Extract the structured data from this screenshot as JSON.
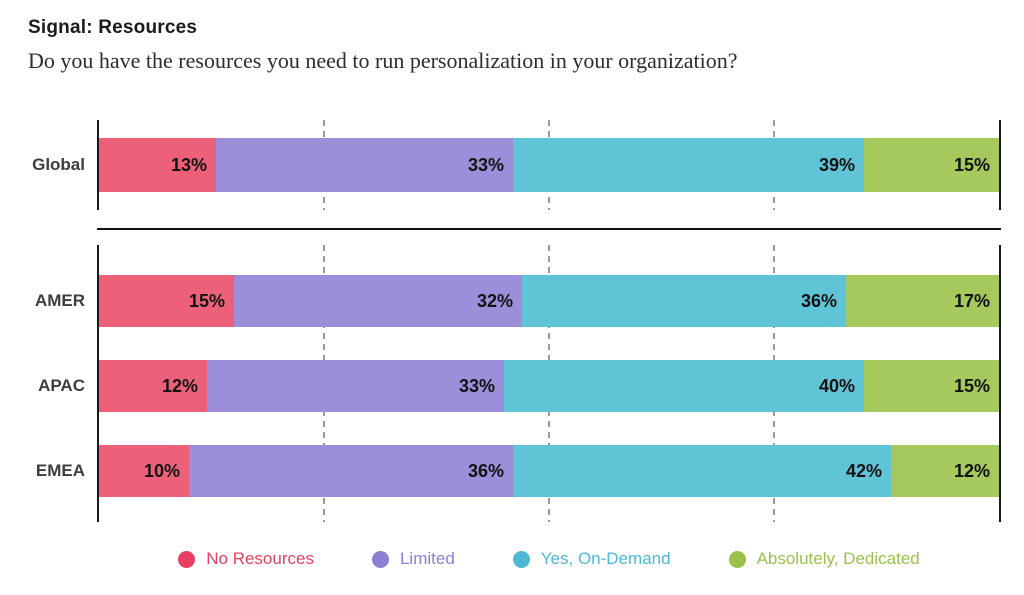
{
  "header": {
    "title": "Signal: Resources",
    "subtitle": "Do you have the resources you need to run personalization in your organization?"
  },
  "chart_data": {
    "type": "bar",
    "stacked": true,
    "orientation": "horizontal",
    "title": "Signal: Resources",
    "question": "Do you have the resources you need to run personalization in your organization?",
    "value_suffix": "%",
    "xlim": [
      0,
      100
    ],
    "gridlines": [
      25,
      50,
      75
    ],
    "grid_style": "dashed",
    "legend_position": "bottom",
    "segments": [
      "No Resources",
      "Limited",
      "Yes, On-Demand",
      "Absolutely, Dedicated"
    ],
    "colors": [
      "#ec6179",
      "#9c8ed9",
      "#5fc4d6",
      "#a5c95c"
    ],
    "groups": [
      {
        "name": "global",
        "rows": [
          {
            "label": "Global",
            "values": [
              13,
              33,
              39,
              15
            ]
          }
        ]
      },
      {
        "name": "regions",
        "rows": [
          {
            "label": "AMER",
            "values": [
              15,
              32,
              36,
              17
            ]
          },
          {
            "label": "APAC",
            "values": [
              12,
              33,
              40,
              15
            ]
          },
          {
            "label": "EMEA",
            "values": [
              10,
              36,
              42,
              12
            ]
          }
        ]
      }
    ],
    "legend": [
      {
        "label": "No Resources",
        "color": "#e84160"
      },
      {
        "label": "Limited",
        "color": "#8f7ed6"
      },
      {
        "label": "Yes, On-Demand",
        "color": "#4db9d4"
      },
      {
        "label": "Absolutely, Dedicated",
        "color": "#9ac24b"
      }
    ],
    "axis_color": "#1a1a1a",
    "divider_color": "#111111"
  }
}
